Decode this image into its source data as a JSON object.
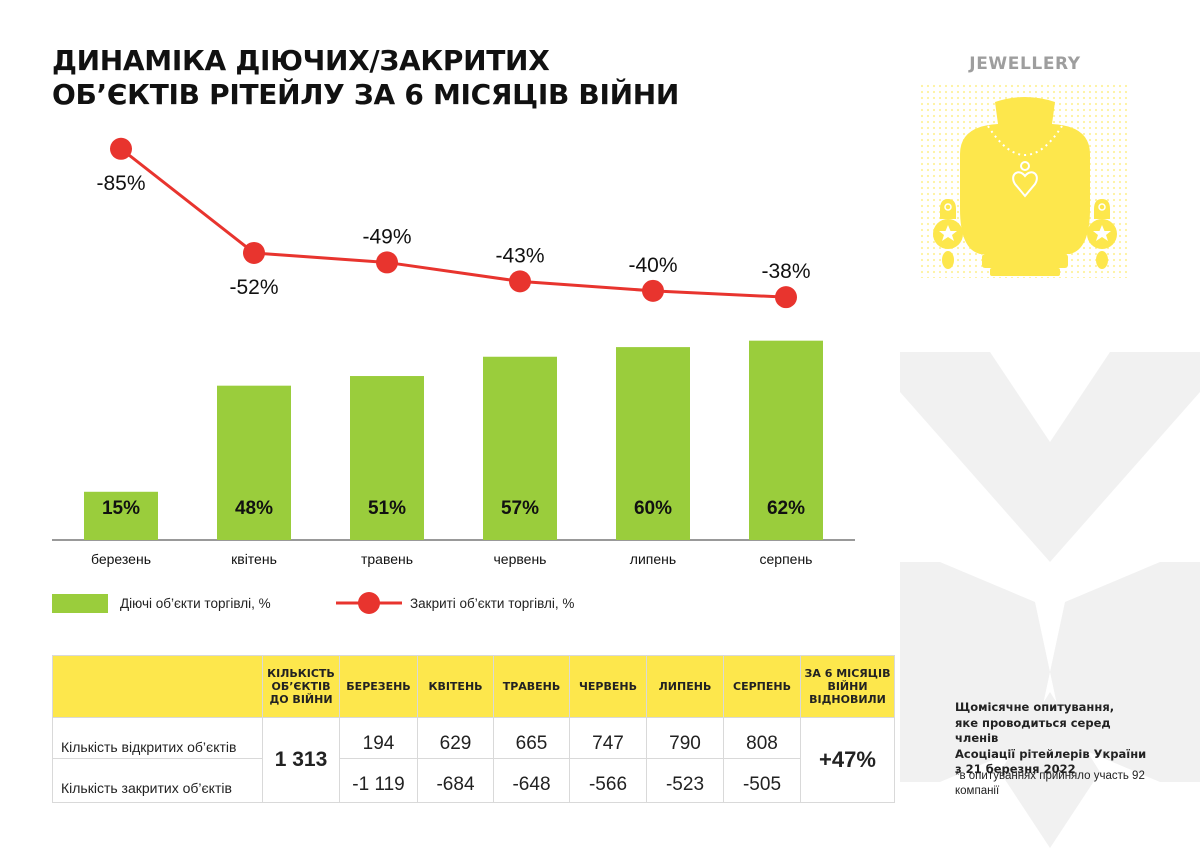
{
  "title": {
    "line1": "ДИНАМІКА ДІЮЧИХ/ЗАКРИТИХ",
    "line2": "ОБ’ЄКТІВ РІТЕЙЛУ ЗА 6 МІСЯЦІВ ВІЙНИ"
  },
  "category": "JEWELLERY",
  "colors": {
    "bar": "#9acd3c",
    "line": "#e8342e",
    "header": "#fde74c",
    "illustration": "#fde74c",
    "decor": "#f0f0f0"
  },
  "chart_data": {
    "type": "bar+line",
    "categories": [
      "березень",
      "квітень",
      "травень",
      "червень",
      "липень",
      "серпень"
    ],
    "series": [
      {
        "name": "Діючі об’єкти торгівлі, %",
        "type": "bar",
        "values": [
          15,
          48,
          51,
          57,
          60,
          62
        ],
        "labels": [
          "15%",
          "48%",
          "51%",
          "57%",
          "60%",
          "62%"
        ]
      },
      {
        "name": "Закриті об’єкти торгівлі, %",
        "type": "line",
        "values": [
          -85,
          -52,
          -49,
          -43,
          -40,
          -38
        ],
        "labels": [
          "-85%",
          "-52%",
          "-49%",
          "-43%",
          "-40%",
          "-38%"
        ]
      }
    ],
    "bar_ylim": [
      0,
      100
    ],
    "line_ylim": [
      -90,
      -35
    ]
  },
  "legend": {
    "bar": "Діючі об’єкти торгівлі, %",
    "line": "Закриті об’єкти торгівлі, %"
  },
  "table": {
    "headers": {
      "prewar": "КІЛЬКІСТЬ ОБ’ЄКТІВ ДО ВІЙНИ",
      "months": [
        "БЕРЕЗЕНЬ",
        "КВІТЕНЬ",
        "ТРАВЕНЬ",
        "ЧЕРВЕНЬ",
        "ЛИПЕНЬ",
        "СЕРПЕНЬ"
      ],
      "total": "ЗА 6 МІСЯЦІВ ВІЙНИ ВІДНОВИЛИ"
    },
    "prewar_value": "1 313",
    "total_value": "+47%",
    "rows": [
      {
        "label": "Кількість відкритих об’єктів",
        "values": [
          "194",
          "629",
          "665",
          "747",
          "790",
          "808"
        ]
      },
      {
        "label": "Кількість закритих об’єктів",
        "values": [
          "-1 119",
          "-684",
          "-648",
          "-566",
          "-523",
          "-505"
        ]
      }
    ]
  },
  "source": {
    "line1": "Щомісячне опитування,",
    "line2": "яке проводиться серед членів",
    "line3": "Асоціації рітейлерів України",
    "line4": "з 21 березня 2022"
  },
  "note": "*в опитуваннях прийняло участь 92 компанії"
}
